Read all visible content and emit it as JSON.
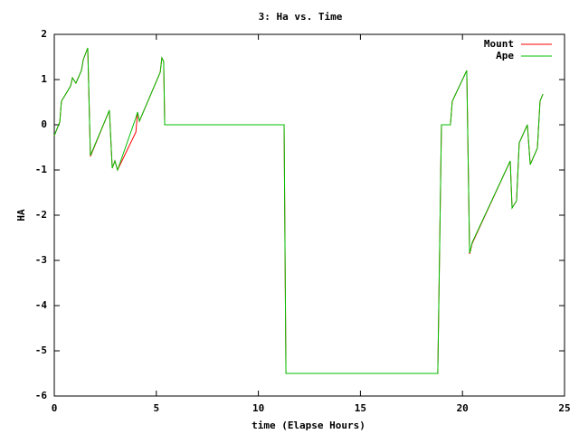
{
  "chart_data": {
    "type": "line",
    "title": "3: Ha vs. Time",
    "x_label": "time (Elapse Hours)",
    "y_label": "HA",
    "x": [
      0,
      0.27,
      0.35,
      0.8,
      0.89,
      1.06,
      1.33,
      1.42,
      1.64,
      1.77,
      2.7,
      2.84,
      2.97,
      3.1,
      4.0,
      4.08,
      4.17,
      5.19,
      5.27,
      5.36,
      5.41,
      11.26,
      11.35,
      18.79,
      18.97,
      19.41,
      19.5,
      20.21,
      20.35,
      20.48,
      22.34,
      22.43,
      22.65,
      22.78,
      23.18,
      23.32,
      23.67,
      23.8,
      23.94
    ],
    "series": [
      {
        "name": "Mount",
        "color": "#ff0000",
        "values": [
          -0.24,
          0.06,
          0.52,
          0.86,
          1.04,
          0.92,
          1.2,
          1.44,
          1.7,
          -0.7,
          0.32,
          -0.96,
          -0.8,
          -1.0,
          -0.16,
          0.28,
          0.08,
          1.16,
          1.48,
          1.4,
          0,
          0,
          -5.5,
          -5.5,
          0,
          0,
          0.52,
          1.2,
          -2.86,
          -2.62,
          -0.8,
          -1.84,
          -1.68,
          -0.4,
          0,
          -0.88,
          -0.52,
          0.52,
          0.68
        ]
      },
      {
        "name": "Ape",
        "color": "#00c000",
        "values": [
          -0.24,
          0.06,
          0.52,
          0.86,
          1.04,
          0.92,
          1.2,
          1.44,
          1.7,
          -0.68,
          0.32,
          -0.96,
          -0.8,
          -1.0,
          0.16,
          0.28,
          0.08,
          1.16,
          1.48,
          1.4,
          0,
          0,
          -5.5,
          -5.5,
          0,
          0,
          0.52,
          1.2,
          -2.84,
          -2.6,
          -0.8,
          -1.84,
          -1.68,
          -0.4,
          0,
          -0.88,
          -0.52,
          0.52,
          0.68
        ]
      }
    ],
    "xlim": [
      0,
      25
    ],
    "xticks": [
      0,
      5,
      10,
      15,
      20,
      25
    ],
    "ylim": [
      -6,
      2
    ],
    "yticks": [
      -6,
      -5,
      -4,
      -3,
      -2,
      -1,
      0,
      1,
      2
    ],
    "grid": false,
    "legend": "top-right"
  }
}
